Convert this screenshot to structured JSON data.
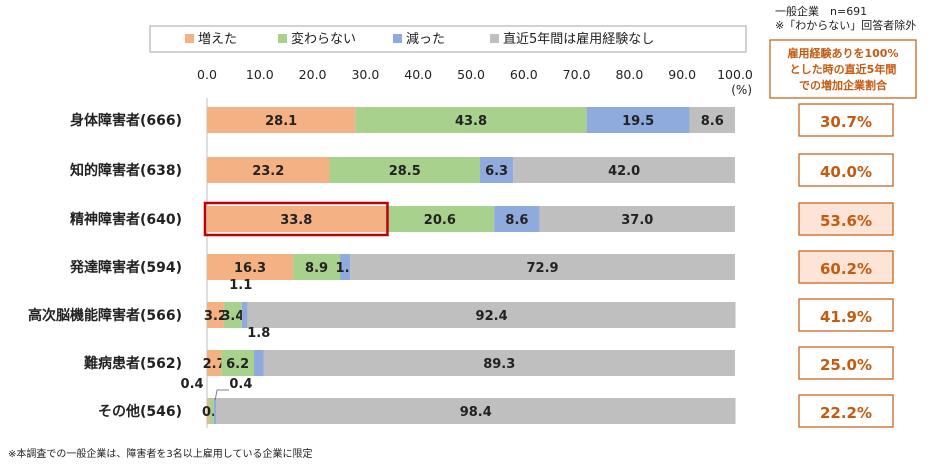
{
  "chart_data": {
    "type": "bar",
    "stacked": true,
    "orientation": "horizontal",
    "categories": [
      "身体障害者(666)",
      "知的障害者(638)",
      "精神障害者(640)",
      "発達障害者(594)",
      "高次脳機能障害者(566)",
      "難病患者(562)",
      "その他(546)"
    ],
    "series": [
      {
        "name": "増えた",
        "color": "#f4b183",
        "values": [
          28.1,
          23.2,
          33.8,
          16.3,
          3.2,
          2.7,
          0.4
        ]
      },
      {
        "name": "変わらない",
        "color": "#a9d18e",
        "values": [
          43.8,
          28.5,
          20.6,
          8.9,
          3.4,
          6.2,
          0.9
        ]
      },
      {
        "name": "減った",
        "color": "#8faadc",
        "values": [
          19.5,
          6.3,
          8.6,
          1.9,
          1.1,
          1.8,
          0.4
        ]
      },
      {
        "name": "直近5年間は雇用経験なし",
        "color": "#bfbfbf",
        "values": [
          8.6,
          42.0,
          37.0,
          72.9,
          92.4,
          89.3,
          98.4
        ]
      }
    ],
    "xlim": [
      0,
      100
    ],
    "xticks": [
      "0.0",
      "10.0",
      "20.0",
      "30.0",
      "40.0",
      "50.0",
      "60.0",
      "70.0",
      "80.0",
      "90.0",
      "100.0"
    ],
    "unit": "(%)",
    "highlight": {
      "category_index": 2,
      "series_index": 0,
      "color": "#c00000"
    },
    "right_panel": {
      "header": "雇用経験ありを100%とした時の直近5年間での増加企業割合",
      "header_lines": [
        "雇用経験ありを100%",
        "とした時の直近5年間",
        "での増加企業割合"
      ],
      "values": [
        "30.7%",
        "40.0%",
        "53.6%",
        "60.2%",
        "41.9%",
        "25.0%",
        "22.2%"
      ],
      "shaded_indices": [
        2,
        3
      ]
    }
  },
  "note_top": [
    "一般企業　n=691",
    "※「わからない」回答者除外"
  ],
  "footnote": "※本調査での一般企業は、障害者を3名以上雇用している企業に限定",
  "colors": {
    "accent": "#c55a11",
    "highlight_fill": "#fce4d6"
  }
}
